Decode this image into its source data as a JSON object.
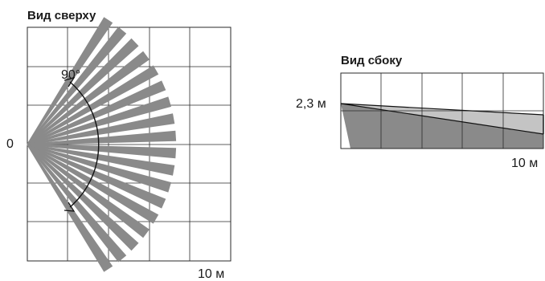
{
  "top_view": {
    "title": "Вид сверху",
    "origin_label": "0",
    "angle_label": "90°",
    "distance_label": "10 м",
    "coverage_angle_deg": 90,
    "beam_count": 18
  },
  "side_view": {
    "title": "Вид сбоку",
    "height_label": "2,3 м",
    "distance_label": "10 м"
  },
  "colors": {
    "beam": "#8a8a8a",
    "grid": "#2a2a2a",
    "side_dark": "#8a8a8a",
    "side_light": "#c4c4c4"
  }
}
